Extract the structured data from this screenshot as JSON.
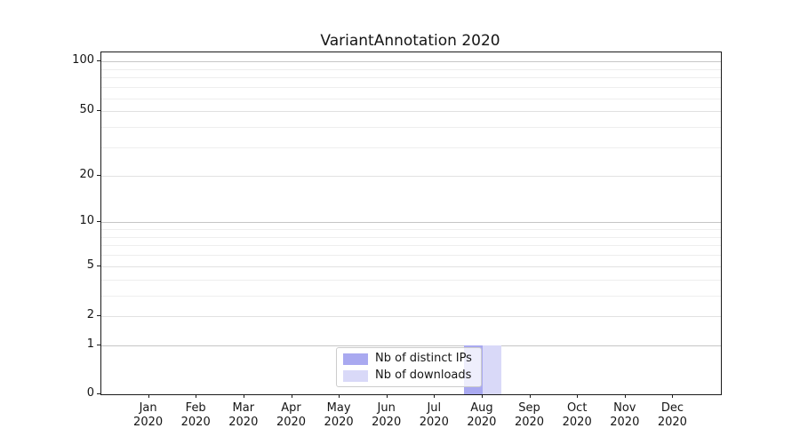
{
  "window": {
    "title": "VariantAnnotation 2020"
  },
  "chart_data": {
    "type": "bar",
    "title": "VariantAnnotation 2020",
    "categories": [
      "Jan 2020",
      "Feb 2020",
      "Mar 2020",
      "Apr 2020",
      "May 2020",
      "Jun 2020",
      "Jul 2020",
      "Aug 2020",
      "Sep 2020",
      "Oct 2020",
      "Nov 2020",
      "Dec 2020"
    ],
    "series": [
      {
        "name": "Nb of distinct IPs",
        "color": "#a9a9f0",
        "values": [
          0,
          0,
          0,
          0,
          0,
          0,
          0,
          1,
          0,
          0,
          0,
          0
        ]
      },
      {
        "name": "Nb of downloads",
        "color": "#d9d9f8",
        "values": [
          0,
          0,
          0,
          0,
          0,
          0,
          0,
          1,
          0,
          0,
          0,
          0
        ]
      }
    ],
    "xlabel": "",
    "ylabel": "",
    "yscale": "log1p",
    "ylim": [
      0,
      115
    ],
    "yticks": [
      0,
      1,
      2,
      5,
      10,
      20,
      50,
      100
    ],
    "decade_gridlines": [
      1,
      10,
      100
    ],
    "minor_gridlines": [
      3,
      4,
      6,
      7,
      8,
      9,
      30,
      40,
      60,
      70,
      80,
      90
    ],
    "grid": true,
    "legend_position": "lower center inside"
  },
  "colors": {
    "background": "#ffffff",
    "spine": "#1a1a1a",
    "grid_decade": "#c6c6c6",
    "grid_labeled": "#e1e1e1",
    "grid_minor": "#eeeeee",
    "text": "#151515",
    "legend_border": "#cccccc",
    "legend_background": "rgba(255,255,255,0.8)"
  }
}
